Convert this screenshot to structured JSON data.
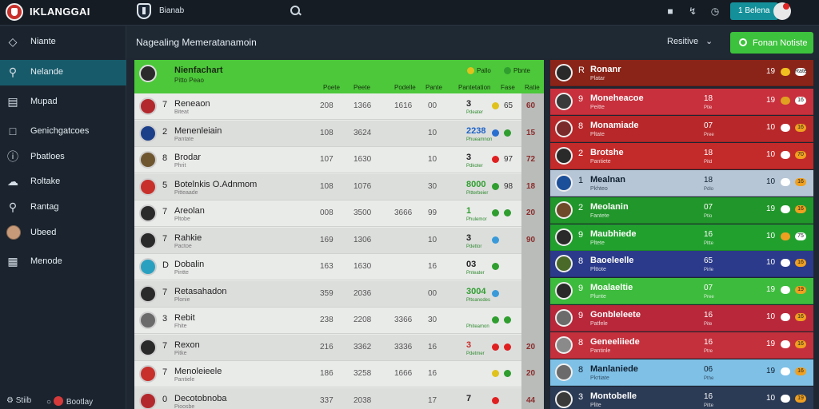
{
  "app": {
    "title": "IKLANGGAI",
    "section": "Bianab"
  },
  "topbar": {
    "icons": [
      "user-icon",
      "pin-icon",
      "clock-icon"
    ],
    "button_label": "1 Belena"
  },
  "sidebar": {
    "items": [
      {
        "label": "Niante",
        "icon": "diamond-icon",
        "active": false
      },
      {
        "label": "Nelande",
        "icon": "search-icon",
        "active": true
      },
      {
        "label": "Mupad",
        "icon": "briefcase-icon",
        "active": false
      },
      {
        "label": "Genichgatcoes",
        "icon": "doc-icon",
        "active": false
      },
      {
        "label": "Pbatloes",
        "icon": "info-icon",
        "active": false
      },
      {
        "label": "Roltake",
        "icon": "cloud-icon",
        "active": false
      },
      {
        "label": "Rantag",
        "icon": "search-icon",
        "active": false
      },
      {
        "label": "Ubeed",
        "icon": "avatar",
        "active": false
      },
      {
        "label": "Menode",
        "icon": "grid-icon",
        "active": false
      }
    ],
    "footer_left": "Stiib",
    "footer_right": "Bootlay"
  },
  "subheader": {
    "title": "Nagealing Memeratanamoin",
    "filter_label": "Resitive",
    "action_label": "Fonan Notiste"
  },
  "left_panel": {
    "header": {
      "title": "Nienfachart",
      "subtitle": "Pitto Peao",
      "badge1": "Pallo",
      "badge2": "Pbnte"
    },
    "columns": [
      "Poete",
      "Peete",
      "Podelle",
      "Pante",
      "Pantetation",
      "Fase",
      "Ratie"
    ],
    "rows": [
      {
        "rank": "7",
        "name": "Reneaon",
        "sub": "Biteat",
        "c1": "208",
        "c2": "1366",
        "c3": "1616",
        "c4": "00",
        "c5": "3",
        "c5_color": "#222",
        "c5_sub": "Pdeater",
        "d1": "#e0c21c",
        "d2": "#2f9e2f",
        "c6": "65",
        "stripe": "60",
        "avatar_color": "#b3282c"
      },
      {
        "rank": "2",
        "name": "Menenleiain",
        "sub": "Pantate",
        "c1": "108",
        "c2": "3624",
        "c3": "",
        "c4": "10",
        "c5": "2238",
        "c5_color": "#1e63c8",
        "c5_sub": "Phueamnon",
        "d1": "#2a6fd0",
        "d2": "#2f9e2f",
        "c6": "",
        "stripe": "15",
        "avatar_color": "#1c3f8a"
      },
      {
        "rank": "8",
        "name": "Brodar",
        "sub": "Phrit",
        "c1": "107",
        "c2": "1630",
        "c3": "",
        "c4": "10",
        "c5": "3",
        "c5_color": "#222",
        "c5_sub": "Pdkoter",
        "d1": "#e02020",
        "d2": "",
        "c6": "97",
        "stripe": "72",
        "avatar_color": "#6e5630"
      },
      {
        "rank": "5",
        "name": "Botelnkis O.Adnmom",
        "sub": "Pitteaade",
        "c1": "108",
        "c2": "1076",
        "c3": "",
        "c4": "30",
        "c5": "8000",
        "c5_color": "#2f9e2f",
        "c5_sub": "Pitterbeier",
        "d1": "#2f9e2f",
        "d2": "",
        "c6": "98",
        "stripe": "18",
        "avatar_color": "#c8302c"
      },
      {
        "rank": "7",
        "name": "Areolan",
        "sub": "Pltobe",
        "c1": "008",
        "c2": "3500",
        "c3": "3666",
        "c4": "99",
        "c5": "1",
        "c5_color": "#2f9e2f",
        "c5_sub": "Phulemor",
        "d1": "#2f9e2f",
        "d2": "#2f9e2f",
        "c6": "",
        "stripe": "20",
        "avatar_color": "#2a2a2a"
      },
      {
        "rank": "7",
        "name": "Rahkie",
        "sub": "Pactoe",
        "c1": "169",
        "c2": "1306",
        "c3": "",
        "c4": "10",
        "c5": "3",
        "c5_color": "#222",
        "c5_sub": "Pdettor",
        "d1": "#3a9ad9",
        "d2": "",
        "c6": "",
        "stripe": "90",
        "avatar_color": "#2a2a2a"
      },
      {
        "rank": "D",
        "name": "Dobalin",
        "sub": "Pintte",
        "c1": "163",
        "c2": "1630",
        "c3": "",
        "c4": "16",
        "c5": "03",
        "c5_color": "#222",
        "c5_sub": "Pnteater",
        "d1": "#2f9e2f",
        "d2": "",
        "c6": "",
        "stripe": "",
        "avatar_color": "#2aa0c0"
      },
      {
        "rank": "7",
        "name": "Retasahadon",
        "sub": "Plonie",
        "c1": "359",
        "c2": "2036",
        "c3": "",
        "c4": "00",
        "c5": "3004",
        "c5_color": "#2f9e2f",
        "c5_sub": "Pltoanodes",
        "d1": "#3a9ad9",
        "d2": "",
        "c6": "",
        "stripe": "",
        "avatar_color": "#2a2a2a"
      },
      {
        "rank": "3",
        "name": "Rebit",
        "sub": "Fhite",
        "c1": "238",
        "c2": "2208",
        "c3": "3366",
        "c4": "30",
        "c5": "",
        "c5_color": "#2f9e2f",
        "c5_sub": "Phiteamon",
        "d1": "#2f9e2f",
        "d2": "#2f9e2f",
        "c6": "",
        "stripe": "",
        "avatar_color": "#6b6b6b"
      },
      {
        "rank": "7",
        "name": "Rexon",
        "sub": "Pitke",
        "c1": "216",
        "c2": "3362",
        "c3": "3336",
        "c4": "16",
        "c5": "3",
        "c5_color": "#c8302c",
        "c5_sub": "Pdetmer",
        "d1": "#e02020",
        "d2": "#e02020",
        "c6": "",
        "stripe": "20",
        "avatar_color": "#2a2a2a"
      },
      {
        "rank": "7",
        "name": "Menoleieele",
        "sub": "Pantiele",
        "c1": "186",
        "c2": "3258",
        "c3": "1666",
        "c4": "16",
        "c5": "",
        "c5_color": "#e07020",
        "c5_sub": "",
        "d1": "#e0c21c",
        "d2": "#2f9e2f",
        "c6": "",
        "stripe": "20",
        "avatar_color": "#c8302c"
      },
      {
        "rank": "0",
        "name": "Decotobnoba",
        "sub": "Pioosbe",
        "c1": "337",
        "c2": "2038",
        "c3": "",
        "c4": "17",
        "c5": "7",
        "c5_color": "#222",
        "c5_sub": "",
        "d1": "#e02020",
        "d2": "",
        "c6": "",
        "stripe": "44",
        "avatar_color": "#b3282c"
      }
    ]
  },
  "right_panel": {
    "rows": [
      {
        "rank": "R",
        "name": "Ronanr",
        "sub": "Platar",
        "c1": "",
        "c1s": "",
        "c2": "19",
        "d1": "#f0c020",
        "d2": "Rate",
        "bg": "#8a2418",
        "light": false,
        "avatar_color": "#2a2a2a"
      },
      {
        "rank": "9",
        "name": "Moneheacoe",
        "sub": "Peitte",
        "c1": "18",
        "c1s": "Ptle",
        "c2": "19",
        "d1": "#e0a020",
        "d2": "16",
        "bg": "#c7303c",
        "light": false,
        "avatar_color": "#3a3a3a"
      },
      {
        "rank": "8",
        "name": "Monamiade",
        "sub": "Pltate",
        "c1": "07",
        "c1s": "Pree",
        "c2": "10",
        "d1": "#ffffff",
        "d2": "16",
        "bg": "#b8282a",
        "light": false,
        "avatar_color": "#7a2a2a"
      },
      {
        "rank": "2",
        "name": "Brotshe",
        "sub": "Pantiete",
        "c1": "18",
        "c1s": "Pitd",
        "c2": "10",
        "d1": "#ffffff",
        "d2": "70",
        "bg": "#c32a2a",
        "light": false,
        "avatar_color": "#2a2a2a"
      },
      {
        "rank": "1",
        "name": "Mealnan",
        "sub": "Pkhteo",
        "c1": "18",
        "c1s": "Pdlo",
        "c2": "10",
        "d1": "#ffffff",
        "d2": "16",
        "bg": "#b7c6d6",
        "light": true,
        "avatar_color": "#1c4f9a"
      },
      {
        "rank": "2",
        "name": "Meolanin",
        "sub": "Fantete",
        "c1": "07",
        "c1s": "Ptlo",
        "c2": "19",
        "d1": "#ffffff",
        "d2": "16",
        "bg": "#21962a",
        "light": false,
        "avatar_color": "#6e4a2a"
      },
      {
        "rank": "9",
        "name": "Maubhiede",
        "sub": "Pltete",
        "c1": "16",
        "c1s": "Pltte",
        "c2": "10",
        "d1": "#f0a020",
        "d2": "75",
        "bg": "#22a02e",
        "light": false,
        "avatar_color": "#2a2a2a"
      },
      {
        "rank": "8",
        "name": "Baoeleelle",
        "sub": "Plttote",
        "c1": "65",
        "c1s": "Pirle",
        "c2": "10",
        "d1": "#ffffff",
        "d2": "16",
        "bg": "#2b3a8a",
        "light": false,
        "avatar_color": "#4a6a2a"
      },
      {
        "rank": "9",
        "name": "Moalaeltie",
        "sub": "Plunte",
        "c1": "07",
        "c1s": "Pree",
        "c2": "19",
        "d1": "#ffffff",
        "d2": "19",
        "bg": "#3dbb3d",
        "light": false,
        "avatar_color": "#2a2a2a"
      },
      {
        "rank": "9",
        "name": "Gonbleleete",
        "sub": "Patfele",
        "c1": "16",
        "c1s": "Pite",
        "c2": "10",
        "d1": "#ffffff",
        "d2": "16",
        "bg": "#b8283a",
        "light": false,
        "avatar_color": "#6b6b6b"
      },
      {
        "rank": "8",
        "name": "Geneeliiede",
        "sub": "Pantinle",
        "c1": "16",
        "c1s": "Ptre",
        "c2": "19",
        "d1": "#ffffff",
        "d2": "16",
        "bg": "#c4303c",
        "light": false,
        "avatar_color": "#8a8a8a"
      },
      {
        "rank": "8",
        "name": "Manlaniede",
        "sub": "Pkrtiate",
        "c1": "06",
        "c1s": "Pthe",
        "c2": "19",
        "d1": "#ffffff",
        "d2": "16",
        "bg": "#7fc0e6",
        "light": true,
        "avatar_color": "#6b6b6b"
      },
      {
        "rank": "3",
        "name": "Montobelle",
        "sub": "Plite",
        "c1": "16",
        "c1s": "Pitte",
        "c2": "10",
        "d1": "#ffffff",
        "d2": "19",
        "bg": "#2b3a55",
        "light": false,
        "avatar_color": "#3a3a3a"
      }
    ]
  },
  "colors": {
    "accent_green": "#3cc23c",
    "teal": "#14909a",
    "sidebar_active": "#175a6a"
  }
}
